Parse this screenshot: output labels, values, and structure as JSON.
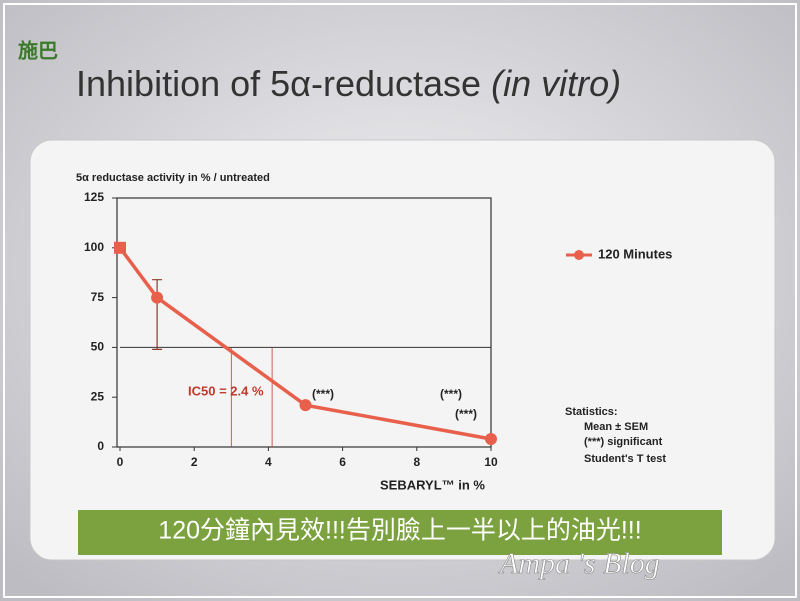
{
  "logo": "施巴",
  "chart_data": {
    "type": "line",
    "title": "Inhibition of 5α-reductase",
    "title_note": "(in vitro)",
    "y_label": "5α reductase activity in % / untreated",
    "x_label": "SEBARYL™ in %",
    "x": [
      0,
      1,
      5,
      10
    ],
    "series": [
      {
        "name": "120 Minutes",
        "color": "#e8604c",
        "values": [
          100,
          75,
          21,
          4
        ],
        "errors_upper": [
          null,
          9,
          null,
          null
        ],
        "errors_lower": [
          null,
          26,
          null,
          null
        ]
      }
    ],
    "xlim": [
      0,
      10
    ],
    "xticks": [
      0,
      2,
      4,
      6,
      8,
      10
    ],
    "ylim": [
      0,
      125
    ],
    "yticks": [
      0,
      25,
      50,
      75,
      100,
      125
    ],
    "ic50_y": 50,
    "ic50_x": [
      3,
      4.1
    ],
    "ic50_label": "IC50 = 2.4 %",
    "annotations": [
      "(***)",
      "(***)",
      "(***)"
    ],
    "statistics": [
      "Statistics:",
      "Mean ± SEM",
      "(***) significant",
      "Student's T test"
    ],
    "legend": "right"
  },
  "banner": "120分鐘內見效!!!告別臉上一半以上的油光!!!",
  "watermark": "Ampa 's Blog"
}
